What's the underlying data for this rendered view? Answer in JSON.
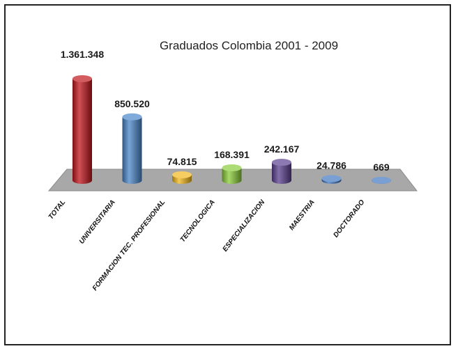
{
  "chart_data": {
    "type": "bar",
    "title": "Graduados Colombia 2001 - 2009",
    "categories": [
      "TOTAL",
      "UNIVERSITARIA",
      "FORMACION TEC. PROFESIONAL",
      "TECNOLOGICA",
      "ESPECIALIZACION",
      "MAESTRIA",
      "DOCTORADO"
    ],
    "values": [
      1361348,
      850520,
      74815,
      168391,
      242167,
      24786,
      669
    ],
    "value_labels": [
      "1.361.348",
      "850.520",
      "74.815",
      "168.391",
      "242.167",
      "24.786",
      "669"
    ],
    "colors": [
      "#c0161c",
      "#4a86c8",
      "#f2b81c",
      "#8acc3a",
      "#5a3f8f",
      "#3f76c0",
      "#3f76c0"
    ],
    "xlabel": "",
    "ylabel": "",
    "grid": false,
    "legend": "none",
    "style": "3d-cylinder"
  }
}
